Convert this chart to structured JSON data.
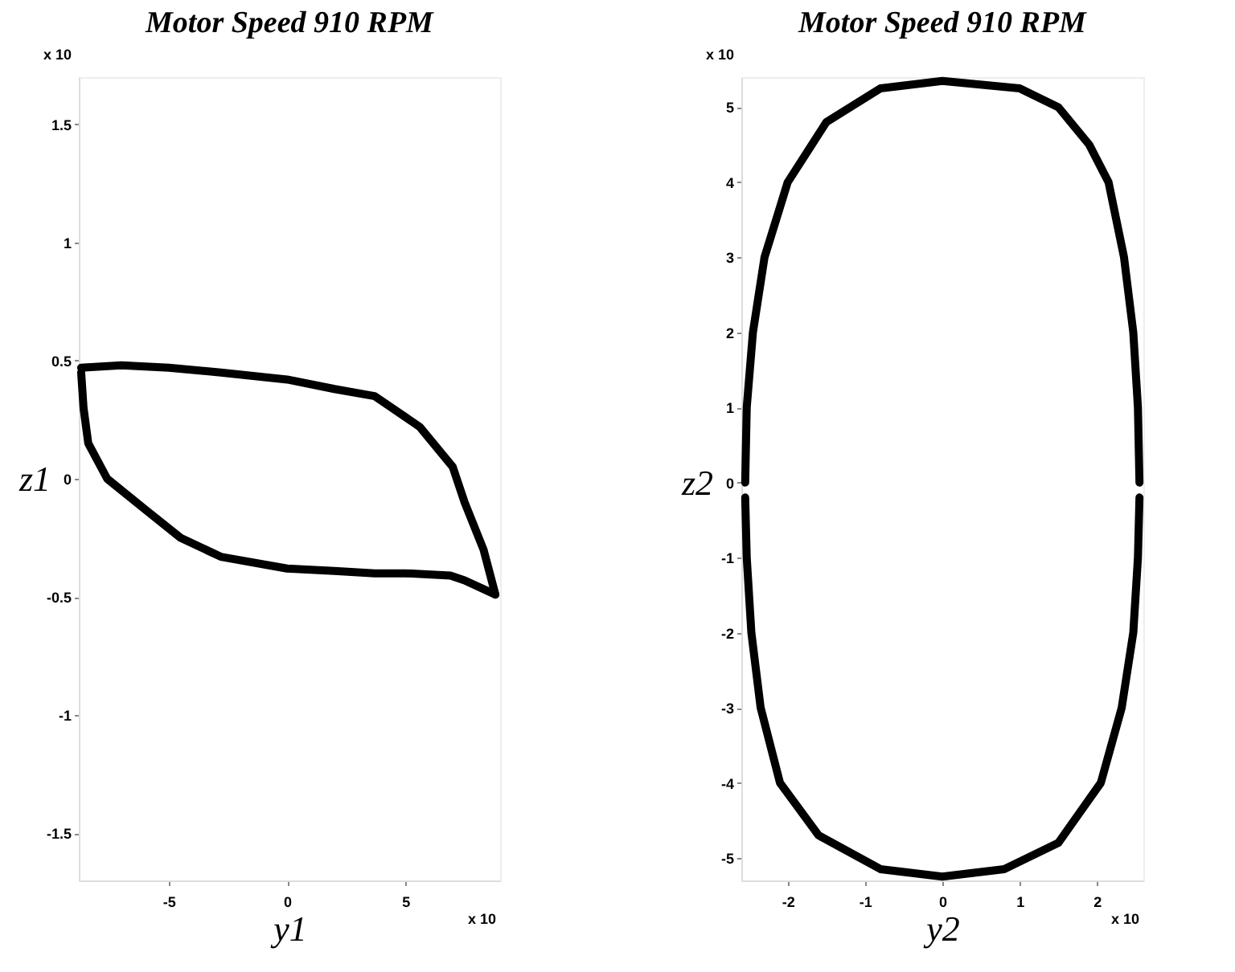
{
  "chart_data": [
    {
      "type": "line",
      "title": "Motor Speed 910 RPM",
      "xlabel": "y1",
      "ylabel": "z1",
      "annotations": [
        "x 10",
        "x 10"
      ],
      "series": [
        {
          "color": "#000000",
          "x": [
            -8.7,
            -7,
            -5,
            -2.8,
            0,
            2,
            3.7,
            5.6,
            7,
            7.5,
            8.3,
            8.8
          ],
          "values": [
            0.47,
            0.48,
            0.47,
            0.45,
            0.42,
            0.38,
            0.35,
            0.22,
            0.05,
            -0.1,
            -0.3,
            -0.49
          ]
        },
        {
          "color": "#000000",
          "x": [
            -8.7,
            -8.6,
            -8.4,
            -7.6,
            -6,
            -4.5,
            -2.8,
            0,
            2,
            3.7,
            5,
            6.9,
            7.5,
            8.8
          ],
          "values": [
            0.45,
            0.3,
            0.15,
            0,
            -0.13,
            -0.25,
            -0.33,
            -0.38,
            -0.39,
            -0.4,
            -0.4,
            -0.41,
            -0.43,
            -0.49
          ]
        }
      ],
      "xlim": [
        -8.8,
        9
      ],
      "ylim": [
        -1.7,
        1.7
      ],
      "xticks": [
        -5,
        0,
        5
      ],
      "yticks": [
        -1.5,
        -1,
        -0.5,
        0,
        0.5,
        1,
        1.5
      ],
      "grid": false,
      "line_style": "solid",
      "marker": "none"
    },
    {
      "type": "line",
      "title": "Motor Speed 910 RPM",
      "xlabel": "y2",
      "ylabel": "z2",
      "annotations": [
        "x 10",
        "x 10"
      ],
      "series": [
        {
          "color": "#000000",
          "x": [
            -2.55,
            -2.53,
            -2.45,
            -2.3,
            -2.0,
            -1.5,
            -0.8,
            0,
            1,
            1.5,
            1.9,
            2.15,
            2.35,
            2.47,
            2.53,
            2.55
          ],
          "values": [
            0,
            1,
            2,
            3,
            4,
            4.8,
            5.25,
            5.35,
            5.25,
            5.0,
            4.5,
            4.0,
            3.0,
            2.0,
            1.0,
            0
          ]
        },
        {
          "color": "#000000",
          "x": [
            -2.55,
            -2.53,
            -2.47,
            -2.35,
            -2.1,
            -1.6,
            -0.8,
            0,
            0.8,
            1.5,
            2.05,
            2.32,
            2.47,
            2.53,
            2.55
          ],
          "values": [
            -0.2,
            -1,
            -2,
            -3,
            -4,
            -4.7,
            -5.15,
            -5.25,
            -5.15,
            -4.8,
            -4,
            -3,
            -2,
            -1,
            -0.2
          ]
        }
      ],
      "xlim": [
        -2.6,
        2.6
      ],
      "ylim": [
        -5.3,
        5.4
      ],
      "xticks": [
        -2,
        -1,
        0,
        1,
        2
      ],
      "yticks": [
        -5,
        -4,
        -3,
        -2,
        -1,
        0,
        1,
        2,
        3,
        4,
        5
      ],
      "grid": false,
      "line_style": "solid",
      "marker": "none"
    }
  ]
}
